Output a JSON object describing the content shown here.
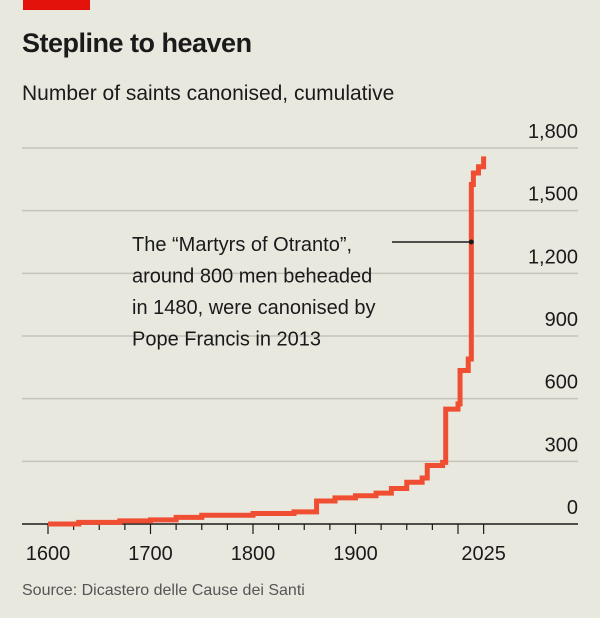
{
  "title": "Stepline to heaven",
  "subtitle": "Number of saints canonised, cumulative",
  "source": "Source: Dicastero delle Cause dei Santi",
  "colors": {
    "line": "#f04e33",
    "accent": "#e3120b",
    "background": "#e9e8df",
    "grid": "#c4c3ba"
  },
  "chart_data": {
    "type": "line",
    "step": true,
    "title": "Stepline to heaven",
    "subtitle": "Number of saints canonised, cumulative",
    "xlim": [
      1600,
      2025
    ],
    "ylim": [
      0,
      1800
    ],
    "x_ticks": [
      1600,
      1700,
      1800,
      1900,
      2025
    ],
    "x_tick_labels": [
      "1600",
      "1700",
      "1800",
      "1900",
      "2025"
    ],
    "y_ticks": [
      0,
      300,
      600,
      900,
      1200,
      1500,
      1800
    ],
    "y_tick_labels": [
      "0",
      "300",
      "600",
      "900",
      "1,200",
      "1,500",
      "1,800"
    ],
    "y_axis_side": "right",
    "grid": true,
    "series": [
      {
        "x": [
          1600,
          1630,
          1670,
          1700,
          1725,
          1750,
          1800,
          1840,
          1862,
          1880,
          1900,
          1920,
          1935,
          1950,
          1965,
          1970,
          1985,
          1988,
          2000,
          2002,
          2010,
          2013,
          2015,
          2020,
          2025
        ],
        "y": [
          0,
          8,
          15,
          20,
          32,
          42,
          50,
          58,
          110,
          125,
          135,
          148,
          170,
          200,
          220,
          280,
          295,
          550,
          575,
          735,
          790,
          1625,
          1680,
          1710,
          1760
        ]
      }
    ],
    "annotations": [
      {
        "text_lines": [
          "The “Martyrs of Otranto”,",
          "around 800 men beheaded",
          "in 1480, were canonised by",
          "Pope Francis in 2013"
        ],
        "x": 2013,
        "y": 1350
      }
    ]
  }
}
